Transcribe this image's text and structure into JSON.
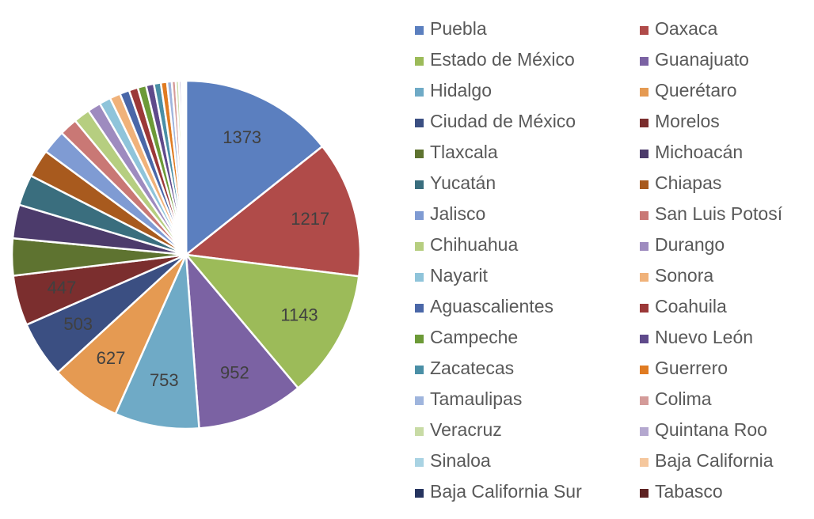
{
  "chart_data": {
    "type": "pie",
    "start_angle_deg": 0,
    "direction": "clockwise",
    "legend_position": "right",
    "legend_columns": 2,
    "data_labels_shown_for_first": 8,
    "slices": [
      {
        "name": "Puebla",
        "value": 1373,
        "label": "1373",
        "color": "#5B7FBF"
      },
      {
        "name": "Oaxaca",
        "value": 1217,
        "label": "1217",
        "color": "#B04B49"
      },
      {
        "name": "Estado de México",
        "value": 1143,
        "label": "1143",
        "color": "#9CBB59"
      },
      {
        "name": " Guanajuato",
        "value": 952,
        "label": "952",
        "color": "#7B62A3"
      },
      {
        "name": "Hidalgo",
        "value": 753,
        "label": "753",
        "color": "#6FAAC6"
      },
      {
        "name": "Querétaro",
        "value": 627,
        "label": "627",
        "color": "#E59A52"
      },
      {
        "name": "Ciudad de México",
        "value": 503,
        "label": "503",
        "color": "#3B4F82"
      },
      {
        "name": "Morelos",
        "value": 447,
        "label": "447",
        "color": "#7B2E2E"
      },
      {
        "name": "Tlaxcala",
        "value": 330,
        "color": "#5E7330"
      },
      {
        "name": "Michoacán",
        "value": 300,
        "color": "#4C3B6B"
      },
      {
        "name": "Yucatán",
        "value": 275,
        "color": "#3A6E7E"
      },
      {
        "name": "Chiapas",
        "value": 250,
        "color": "#A85A1E"
      },
      {
        "name": "Jalisco",
        "value": 215,
        "color": "#7F9BD3"
      },
      {
        "name": "San Luis Potosí",
        "value": 160,
        "color": "#C97875"
      },
      {
        "name": "Chihuahua",
        "value": 145,
        "color": "#B6CE80"
      },
      {
        "name": "Durango",
        "value": 118,
        "color": "#9E8BBF"
      },
      {
        "name": "Nayarit",
        "value": 102,
        "color": "#8FC4DA"
      },
      {
        "name": "Sonora",
        "value": 95,
        "color": "#F0B27A"
      },
      {
        "name": "Aguascalientes",
        "value": 85,
        "color": "#4A67A8"
      },
      {
        "name": "Coahuila",
        "value": 80,
        "color": "#9B3838"
      },
      {
        "name": "Campeche",
        "value": 75,
        "color": "#6C9A37"
      },
      {
        "name": "Nuevo León",
        "value": 70,
        "color": "#5F4A8B"
      },
      {
        "name": " Zacatecas",
        "value": 62,
        "color": "#4A8FA6"
      },
      {
        "name": "Guerrero",
        "value": 55,
        "color": "#E07B22"
      },
      {
        "name": "Tamaulipas",
        "value": 42,
        "color": "#9FB5DD"
      },
      {
        "name": "Colima",
        "value": 35,
        "color": "#D49B99"
      },
      {
        "name": "Veracruz",
        "value": 28,
        "color": "#C8DBA5"
      },
      {
        "name": "Quintana Roo",
        "value": 22,
        "color": "#B4A8CF"
      },
      {
        "name": "Sinaloa",
        "value": 16,
        "color": "#A9D3E3"
      },
      {
        "name": "Baja California",
        "value": 12,
        "color": "#F5C79D"
      },
      {
        "name": " Baja California Sur",
        "value": 8,
        "color": "#26345F"
      },
      {
        "name": "Tabasco",
        "value": 5,
        "color": "#5E2222"
      }
    ]
  }
}
